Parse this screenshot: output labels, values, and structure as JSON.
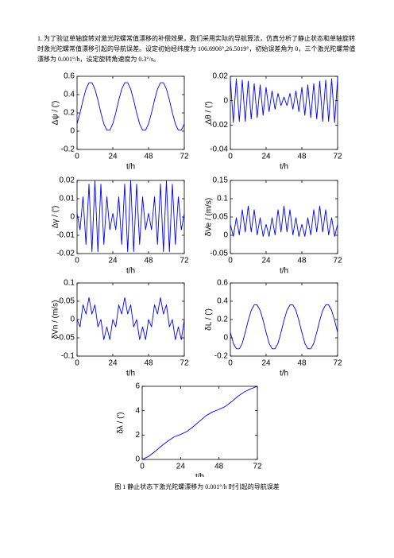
{
  "paragraph": "1. 为了验证单轴旋转对激光陀螺常值漂移的补偿效果，我们采用实际的导航算法，仿真分析了静止状态和单轴旋转时激光陀螺常值漂移引起的导航误差。设定初始经纬度为 106.6906°,26.5019°，初始误差角为 0，三个激光陀螺常值漂移为 0.001°/h，设定旋转角速度为 0.3°/s。",
  "chart_data": [
    {
      "type": "line",
      "x_label": "t/h",
      "y_label": "Δψ / (')",
      "color": "#0000ff",
      "x": [
        0,
        2,
        4,
        6,
        8,
        10,
        12,
        14,
        16,
        18,
        20,
        22,
        24,
        26,
        28,
        30,
        32,
        34,
        36,
        38,
        40,
        42,
        44,
        46,
        48,
        50,
        52,
        54,
        56,
        58,
        60,
        62,
        64,
        66,
        68,
        70,
        72
      ],
      "values": [
        0.08,
        0.2,
        0.34,
        0.46,
        0.53,
        0.53,
        0.46,
        0.34,
        0.2,
        0.08,
        0.01,
        0.01,
        0.08,
        0.2,
        0.34,
        0.46,
        0.53,
        0.53,
        0.46,
        0.34,
        0.2,
        0.08,
        0.01,
        0.01,
        0.08,
        0.2,
        0.34,
        0.46,
        0.53,
        0.53,
        0.46,
        0.34,
        0.2,
        0.08,
        0.01,
        0.01,
        0.08
      ],
      "xlim": [
        0,
        72
      ],
      "xticks": [
        0,
        24,
        48,
        72
      ],
      "ylim": [
        -0.2,
        0.6
      ],
      "yticks": [
        -0.2,
        0,
        0.2,
        0.4,
        0.6
      ]
    },
    {
      "type": "line",
      "x_label": "t/h",
      "y_label": "Δθ / (')",
      "color": "#0000ff",
      "x": [
        0,
        2,
        4,
        6,
        8,
        10,
        12,
        14,
        16,
        18,
        20,
        22,
        24,
        26,
        28,
        30,
        32,
        34,
        36,
        38,
        40,
        42,
        44,
        46,
        48,
        50,
        52,
        54,
        56,
        58,
        60,
        62,
        64,
        66,
        68,
        70,
        72
      ],
      "values": [
        0.018,
        -0.018,
        0.018,
        -0.017,
        0.017,
        -0.017,
        0.016,
        -0.015,
        0.014,
        -0.014,
        0.013,
        -0.012,
        0.011,
        -0.009,
        0.008,
        -0.007,
        0.006,
        -0.004,
        0.003,
        -0.004,
        0.006,
        -0.007,
        0.008,
        -0.009,
        0.011,
        -0.012,
        0.013,
        -0.014,
        0.014,
        -0.015,
        0.016,
        -0.017,
        0.017,
        -0.017,
        0.018,
        -0.018,
        0.018
      ],
      "xlim": [
        0,
        72
      ],
      "xticks": [
        0,
        24,
        48,
        72
      ],
      "ylim": [
        -0.04,
        0.02
      ],
      "yticks": [
        -0.04,
        -0.02,
        0,
        0.02
      ]
    },
    {
      "type": "line",
      "x_label": "t/h",
      "y_label": "Δγ / (')",
      "color": "#0000ff",
      "x": [
        0,
        2,
        4,
        6,
        8,
        10,
        12,
        14,
        16,
        18,
        20,
        22,
        24,
        26,
        28,
        30,
        32,
        34,
        36,
        38,
        40,
        42,
        44,
        46,
        48,
        50,
        52,
        54,
        56,
        58,
        60,
        62,
        64,
        66,
        68,
        70,
        72
      ],
      "values": [
        0.002,
        -0.007,
        0.011,
        -0.015,
        0.018,
        -0.019,
        0.02,
        -0.019,
        0.018,
        -0.015,
        0.011,
        -0.007,
        0.002,
        -0.007,
        0.011,
        -0.015,
        0.018,
        -0.019,
        0.02,
        -0.019,
        0.018,
        -0.015,
        0.011,
        -0.007,
        0.002,
        -0.007,
        0.011,
        -0.015,
        0.018,
        -0.019,
        0.02,
        -0.019,
        0.018,
        -0.015,
        0.011,
        -0.007,
        0.002
      ],
      "xlim": [
        0,
        72
      ],
      "xticks": [
        0,
        24,
        48,
        72
      ],
      "ylim": [
        -0.02,
        0.02
      ],
      "yticks": [
        -0.02,
        -0.01,
        0,
        0.01,
        0.02
      ]
    },
    {
      "type": "line",
      "x_label": "t/h",
      "y_label": "δVe / (m/s)",
      "color": "#0000ff",
      "x": [
        0,
        2,
        4,
        6,
        8,
        10,
        12,
        14,
        16,
        18,
        20,
        22,
        24,
        26,
        28,
        30,
        32,
        34,
        36,
        38,
        40,
        42,
        44,
        46,
        48,
        50,
        52,
        54,
        56,
        58,
        60,
        62,
        64,
        66,
        68,
        70,
        72
      ],
      "values": [
        0.03,
        -0.003,
        0.048,
        0.001,
        0.07,
        0.009,
        0.08,
        0.009,
        0.07,
        0.001,
        0.048,
        -0.003,
        0.03,
        -0.003,
        0.048,
        0.001,
        0.07,
        0.009,
        0.08,
        0.009,
        0.07,
        0.001,
        0.048,
        -0.003,
        0.03,
        -0.003,
        0.048,
        0.001,
        0.07,
        0.009,
        0.08,
        0.009,
        0.07,
        0.001,
        0.048,
        -0.003,
        0.03
      ],
      "xlim": [
        0,
        72
      ],
      "xticks": [
        0,
        24,
        48,
        72
      ],
      "ylim": [
        -0.05,
        0.15
      ],
      "yticks": [
        -0.05,
        0,
        0.05,
        0.1,
        0.15
      ]
    },
    {
      "type": "line",
      "x_label": "t/h",
      "y_label": "δVn / (m/s)",
      "color": "#0000ff",
      "x": [
        0,
        2,
        4,
        6,
        8,
        10,
        12,
        14,
        16,
        18,
        20,
        22,
        24,
        26,
        28,
        30,
        32,
        34,
        36,
        38,
        40,
        42,
        44,
        46,
        48,
        50,
        52,
        54,
        56,
        58,
        60,
        62,
        64,
        66,
        68,
        70,
        72
      ],
      "values": [
        0,
        -0.02,
        0.04,
        0.015,
        0.06,
        0.015,
        0.04,
        -0.02,
        0,
        -0.055,
        -0.02,
        -0.055,
        0,
        -0.02,
        0.04,
        0.015,
        0.06,
        0.015,
        0.04,
        -0.02,
        0,
        -0.055,
        -0.02,
        -0.055,
        0,
        -0.02,
        0.04,
        0.015,
        0.06,
        0.015,
        0.04,
        -0.02,
        0,
        -0.055,
        -0.02,
        -0.055,
        0
      ],
      "xlim": [
        0,
        72
      ],
      "xticks": [
        0,
        24,
        48,
        72
      ],
      "ylim": [
        -0.1,
        0.1
      ],
      "yticks": [
        -0.1,
        -0.05,
        0,
        0.05,
        0.1
      ]
    },
    {
      "type": "line",
      "x_label": "t/h",
      "y_label": "δL / (')",
      "color": "#0000ff",
      "x": [
        0,
        2,
        4,
        6,
        8,
        10,
        12,
        14,
        16,
        18,
        20,
        22,
        24,
        26,
        28,
        30,
        32,
        34,
        36,
        38,
        40,
        42,
        44,
        46,
        48,
        50,
        52,
        54,
        56,
        58,
        60,
        62,
        64,
        66,
        68,
        70,
        72
      ],
      "values": [
        0.06,
        -0.06,
        -0.12,
        -0.12,
        -0.06,
        0.06,
        0.19,
        0.3,
        0.36,
        0.36,
        0.3,
        0.19,
        0.06,
        -0.06,
        -0.12,
        -0.12,
        -0.06,
        0.06,
        0.19,
        0.3,
        0.36,
        0.36,
        0.3,
        0.19,
        0.06,
        -0.06,
        -0.12,
        -0.12,
        -0.06,
        0.06,
        0.19,
        0.3,
        0.36,
        0.36,
        0.3,
        0.19,
        0.06
      ],
      "xlim": [
        0,
        72
      ],
      "xticks": [
        0,
        24,
        48,
        72
      ],
      "ylim": [
        -0.2,
        0.6
      ],
      "yticks": [
        -0.2,
        0,
        0.2,
        0.4,
        0.6
      ]
    },
    {
      "type": "line",
      "x_label": "t/h",
      "y_label": "δλ / (')",
      "color": "#0000ff",
      "x": [
        0,
        4,
        8,
        12,
        16,
        20,
        24,
        28,
        32,
        36,
        40,
        44,
        48,
        52,
        56,
        60,
        64,
        68,
        72
      ],
      "values": [
        0,
        0.25,
        0.65,
        1.1,
        1.5,
        1.85,
        2.05,
        2.3,
        2.7,
        3.15,
        3.6,
        3.9,
        4.1,
        4.35,
        4.75,
        5.2,
        5.55,
        5.8,
        6.0
      ],
      "xlim": [
        0,
        72
      ],
      "xticks": [
        0,
        24,
        48,
        72
      ],
      "ylim": [
        0,
        6
      ],
      "yticks": [
        0,
        2,
        4,
        6
      ]
    }
  ],
  "caption": "图 1 静止状态下激光陀螺漂移为 0.001°/h 时引起的导航误差"
}
